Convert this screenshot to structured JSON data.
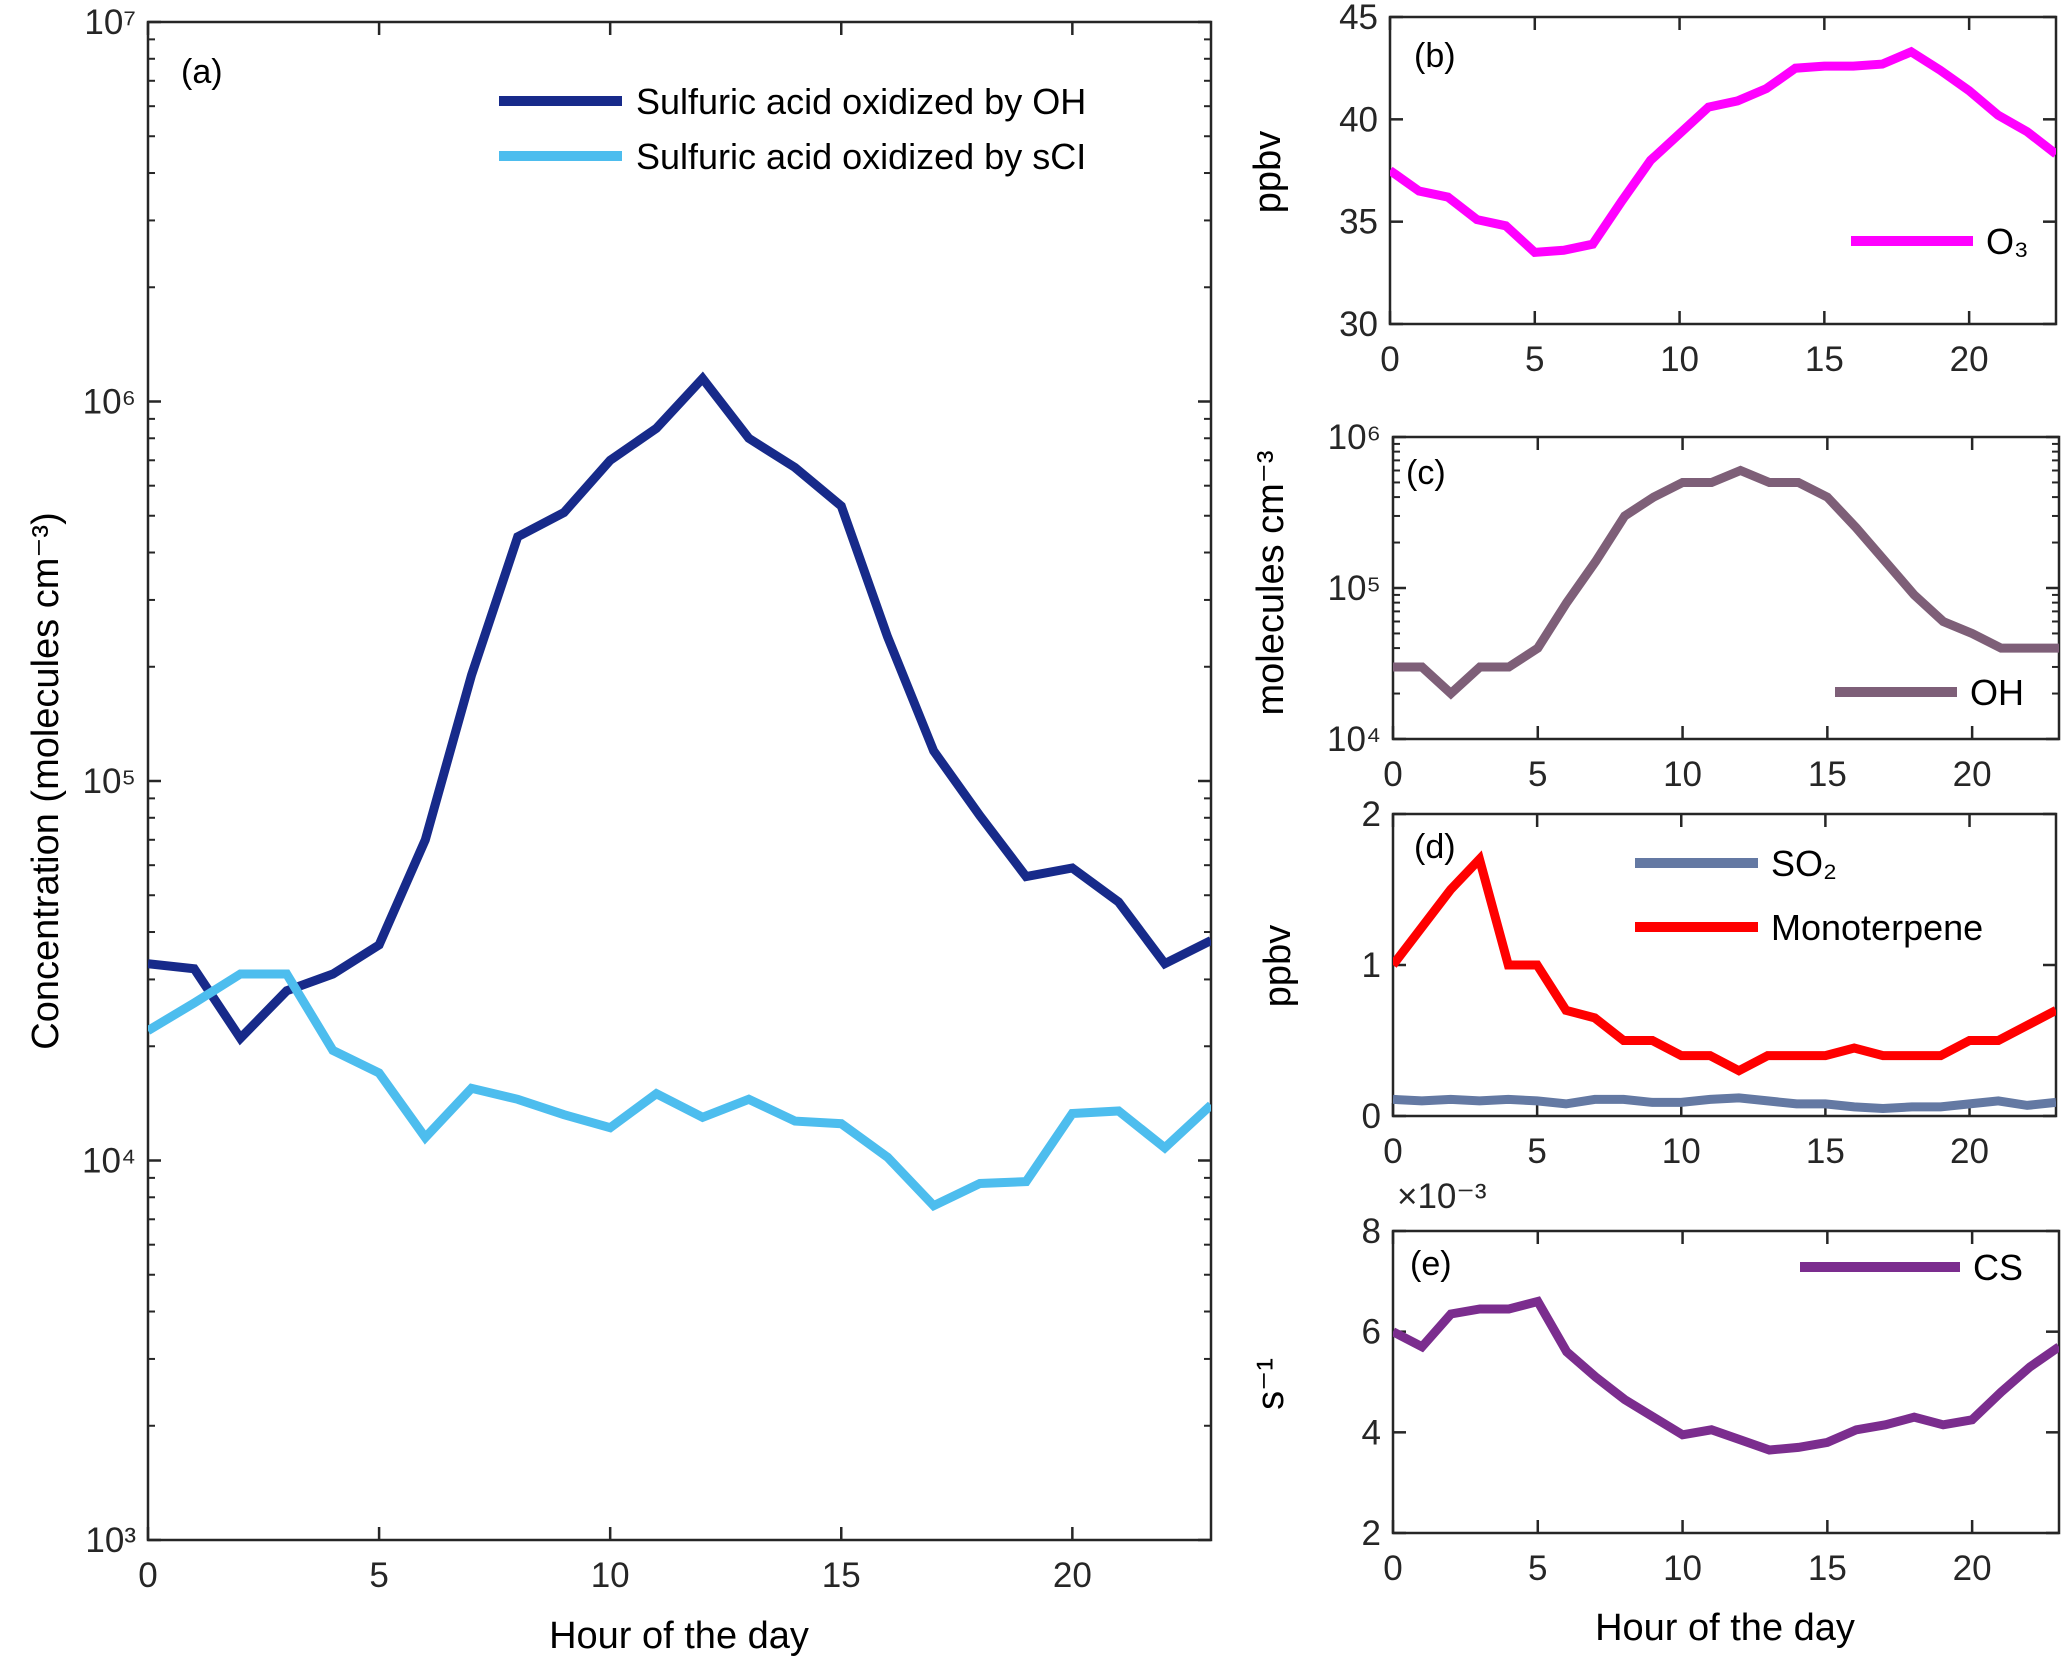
{
  "chart_data": [
    {
      "id": "a",
      "type": "line",
      "panel_label": "(a)",
      "xlabel": "Hour of the day",
      "ylabel": "Concentration (molecules cm⁻³)",
      "yscale": "log",
      "xlim": [
        0,
        23
      ],
      "ylim": [
        1000,
        10000000
      ],
      "xticks": [
        0,
        5,
        10,
        15,
        20
      ],
      "yticks": [
        1000,
        10000,
        100000,
        1000000,
        10000000
      ],
      "yticklabels": [
        "10³",
        "10⁴",
        "10⁵",
        "10⁶",
        "10⁷"
      ],
      "legend_placement": "top-right",
      "x": [
        0,
        1,
        2,
        3,
        4,
        5,
        6,
        7,
        8,
        9,
        10,
        11,
        12,
        13,
        14,
        15,
        16,
        17,
        18,
        19,
        20,
        21,
        22,
        23
      ],
      "series": [
        {
          "name": "Sulfuric acid oxidized by OH",
          "color": "#172a8a",
          "values": [
            33000,
            32000,
            21000,
            28000,
            31000,
            37000,
            70000,
            190000,
            440000,
            510000,
            700000,
            850000,
            1150000,
            800000,
            670000,
            530000,
            240000,
            120000,
            81000,
            56000,
            59000,
            48000,
            33000,
            38000
          ]
        },
        {
          "name": "Sulfuric acid oxidized by sCI",
          "color": "#4dbdee",
          "values": [
            22000,
            26000,
            31000,
            31000,
            19500,
            17000,
            11500,
            15500,
            14500,
            13200,
            12200,
            15000,
            13000,
            14500,
            12700,
            12500,
            10200,
            7600,
            8700,
            8800,
            13300,
            13500,
            10800,
            14000
          ]
        }
      ]
    },
    {
      "id": "b",
      "type": "line",
      "panel_label": "(b)",
      "xlabel": "",
      "ylabel": "ppbv",
      "yscale": "linear",
      "xlim": [
        0,
        23
      ],
      "ylim": [
        30,
        45
      ],
      "xticks": [
        0,
        5,
        10,
        15,
        20
      ],
      "yticks": [
        30,
        35,
        40,
        45
      ],
      "yticklabels": [
        "30",
        "35",
        "40",
        "45"
      ],
      "legend_placement": "lower-right",
      "x": [
        0,
        1,
        2,
        3,
        4,
        5,
        6,
        7,
        8,
        9,
        10,
        11,
        12,
        13,
        14,
        15,
        16,
        17,
        18,
        19,
        20,
        21,
        22,
        23
      ],
      "series": [
        {
          "name": "O₃",
          "color": "#ff00ff",
          "values": [
            37.5,
            36.5,
            36.2,
            35.1,
            34.8,
            33.5,
            33.6,
            33.9,
            36.0,
            38.0,
            39.3,
            40.6,
            40.9,
            41.5,
            42.5,
            42.6,
            42.6,
            42.7,
            43.3,
            42.4,
            41.4,
            40.2,
            39.4,
            38.3
          ]
        }
      ]
    },
    {
      "id": "c",
      "type": "line",
      "panel_label": "(c)",
      "xlabel": "",
      "ylabel": "molecules cm⁻³",
      "yscale": "log",
      "xlim": [
        0,
        23
      ],
      "ylim": [
        10000,
        1000000
      ],
      "xticks": [
        0,
        5,
        10,
        15,
        20
      ],
      "yticks": [
        10000,
        100000,
        1000000
      ],
      "yticklabels": [
        "10⁴",
        "10⁵",
        "10⁶"
      ],
      "legend_placement": "lower-right",
      "x": [
        0,
        1,
        2,
        3,
        4,
        5,
        6,
        7,
        8,
        9,
        10,
        11,
        12,
        13,
        14,
        15,
        16,
        17,
        18,
        19,
        20,
        21,
        22,
        23
      ],
      "series": [
        {
          "name": "OH",
          "color": "#7e5f78",
          "values": [
            30000,
            30000,
            20000,
            30000,
            30000,
            40000,
            80000,
            150000,
            300000,
            400000,
            500000,
            500000,
            600000,
            500000,
            500000,
            400000,
            250000,
            150000,
            90000,
            60000,
            50000,
            40000,
            40000,
            40000
          ]
        }
      ]
    },
    {
      "id": "d",
      "type": "line",
      "panel_label": "(d)",
      "xlabel": "",
      "ylabel": "ppbv",
      "yscale": "linear",
      "xlim": [
        0,
        23
      ],
      "ylim": [
        0,
        2
      ],
      "xticks": [
        0,
        5,
        10,
        15,
        20
      ],
      "yticks": [
        0,
        1,
        2
      ],
      "yticklabels": [
        "0",
        "1",
        "2"
      ],
      "legend_placement": "top-right",
      "x": [
        0,
        1,
        2,
        3,
        4,
        5,
        6,
        7,
        8,
        9,
        10,
        11,
        12,
        13,
        14,
        15,
        16,
        17,
        18,
        19,
        20,
        21,
        22,
        23
      ],
      "series": [
        {
          "name": "SO₂",
          "color": "#6479a3",
          "values": [
            0.11,
            0.1,
            0.11,
            0.1,
            0.11,
            0.1,
            0.08,
            0.11,
            0.11,
            0.09,
            0.09,
            0.11,
            0.12,
            0.1,
            0.08,
            0.08,
            0.06,
            0.05,
            0.06,
            0.06,
            0.08,
            0.1,
            0.07,
            0.09
          ]
        },
        {
          "name": "Monoterpene",
          "color": "#ff0000",
          "values": [
            1.0,
            1.25,
            1.5,
            1.7,
            1.0,
            1.0,
            0.7,
            0.65,
            0.5,
            0.5,
            0.4,
            0.4,
            0.3,
            0.4,
            0.4,
            0.4,
            0.45,
            0.4,
            0.4,
            0.4,
            0.5,
            0.5,
            0.6,
            0.7
          ]
        }
      ]
    },
    {
      "id": "e",
      "type": "line",
      "panel_label": "(e)",
      "xlabel": "Hour of the day",
      "ylabel": "s⁻¹",
      "yscale": "linear",
      "y_multiplier": "×10⁻³",
      "xlim": [
        0,
        23
      ],
      "ylim": [
        2,
        8
      ],
      "xticks": [
        0,
        5,
        10,
        15,
        20
      ],
      "yticks": [
        2,
        4,
        6,
        8
      ],
      "yticklabels": [
        "2",
        "4",
        "6",
        "8"
      ],
      "legend_placement": "top-right",
      "x": [
        0,
        1,
        2,
        3,
        4,
        5,
        6,
        7,
        8,
        9,
        10,
        11,
        12,
        13,
        14,
        15,
        16,
        17,
        18,
        19,
        20,
        21,
        22,
        23
      ],
      "series": [
        {
          "name": "CS",
          "color": "#7b2d8e",
          "values": [
            6.0,
            5.7,
            6.35,
            6.45,
            6.45,
            6.6,
            5.6,
            5.1,
            4.65,
            4.3,
            3.95,
            4.05,
            3.85,
            3.65,
            3.7,
            3.8,
            4.05,
            4.15,
            4.3,
            4.15,
            4.25,
            4.8,
            5.3,
            5.7
          ]
        }
      ]
    }
  ]
}
